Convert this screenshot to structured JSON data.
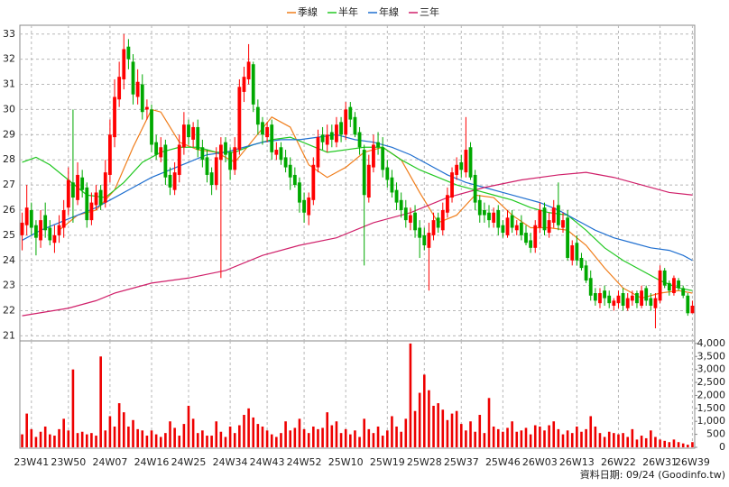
{
  "chart_data": {
    "type": "candlestick",
    "legend_position": "top",
    "grid": true,
    "note": "資料日期: 09/24  (Goodinfo.tw)",
    "categories": [
      null,
      null,
      "23W41",
      null,
      null,
      null,
      null,
      null,
      null,
      null,
      "23W50",
      null,
      null,
      null,
      null,
      null,
      null,
      null,
      null,
      "24W07",
      null,
      null,
      null,
      null,
      null,
      null,
      null,
      null,
      "24W16",
      null,
      null,
      null,
      null,
      null,
      null,
      null,
      "24W25",
      null,
      null,
      null,
      null,
      null,
      null,
      null,
      null,
      "24W34",
      null,
      null,
      null,
      null,
      null,
      null,
      null,
      "24W43",
      null,
      null,
      null,
      null,
      null,
      null,
      null,
      "24W52",
      null,
      null,
      null,
      null,
      null,
      null,
      null,
      null,
      "25W10",
      null,
      null,
      null,
      null,
      null,
      null,
      null,
      null,
      "25W19",
      null,
      null,
      null,
      null,
      null,
      null,
      null,
      "25W28",
      null,
      null,
      null,
      null,
      null,
      null,
      null,
      "25W37",
      null,
      null,
      null,
      null,
      null,
      null,
      null,
      null,
      "25W46",
      null,
      null,
      null,
      null,
      null,
      null,
      null,
      "26W03",
      null,
      null,
      null,
      null,
      null,
      null,
      null,
      "26W13",
      null,
      null,
      null,
      null,
      null,
      null,
      null,
      null,
      "26W22",
      null,
      null,
      null,
      null,
      null,
      null,
      null,
      null,
      "26W31",
      null,
      null,
      null,
      null,
      null,
      null,
      "26W39"
    ],
    "ylim": [
      20.8,
      33.35
    ],
    "yticks": [
      21,
      22,
      23,
      24,
      25,
      26,
      27,
      28,
      29,
      30,
      31,
      32,
      33
    ],
    "y2lim": [
      0,
      4100
    ],
    "y2ticks": [
      0,
      500,
      {
        "value": 1000,
        "label": "1,000"
      },
      {
        "value": 1500,
        "label": "1,500"
      },
      {
        "value": 2000,
        "label": "2,000"
      },
      {
        "value": 2500,
        "label": "2,500"
      },
      {
        "value": 3000,
        "label": "3,000"
      },
      {
        "value": 3500,
        "label": "3,500"
      },
      {
        "value": 4000,
        "label": "4,000"
      }
    ],
    "up_color": "#ff0000",
    "down_color": "#00a800",
    "open": [
      25.0,
      25.4,
      26.0,
      25.4,
      24.8,
      25.8,
      25.3,
      24.7,
      25.0,
      25.3,
      26.1,
      27.1,
      26.4,
      27.3,
      26.9,
      25.6,
      26.2,
      26.8,
      26.3,
      27.4,
      28.9,
      30.4,
      31.2,
      32.5,
      31.9,
      30.5,
      31.0,
      30.0,
      30.0,
      28.7,
      28.1,
      28.6,
      27.4,
      26.8,
      27.4,
      28.5,
      29.4,
      28.8,
      29.3,
      28.5,
      28.1,
      27.5,
      27.0,
      28.0,
      28.7,
      28.3,
      27.6,
      28.4,
      30.7,
      31.2,
      31.8,
      30.1,
      29.5,
      28.9,
      29.4,
      28.2,
      28.5,
      28.1,
      27.8,
      27.4,
      27.1,
      26.4,
      25.8,
      26.4,
      27.7,
      29.0,
      28.6,
      29.1,
      28.7,
      29.5,
      29.0,
      30.1,
      29.7,
      29.1,
      28.4,
      26.5,
      27.7,
      28.7,
      28.5,
      27.7,
      27.3,
      26.8,
      26.4,
      26.1,
      25.5,
      25.9,
      25.3,
      25.0,
      24.5,
      25.0,
      25.7,
      25.2,
      25.9,
      26.5,
      27.4,
      27.9,
      27.5,
      28.5,
      27.4,
      26.4,
      26.0,
      25.9,
      25.5,
      26.0,
      25.4,
      25.0,
      25.8,
      25.2,
      25.5,
      25.1,
      24.8,
      24.5,
      25.3,
      26.1,
      25.1,
      25.5,
      26.2,
      25.3,
      25.7,
      24.0,
      24.7,
      24.1,
      23.8,
      23.3,
      22.7,
      22.3,
      22.8,
      22.6,
      22.2,
      22.3,
      22.7,
      22.1,
      22.4,
      22.7,
      22.2,
      22.9,
      22.5,
      22.1,
      22.4,
      23.6,
      23.1,
      22.7,
      23.2,
      22.9,
      22.6,
      21.9
    ],
    "high": [
      25.9,
      27.0,
      26.3,
      25.6,
      26.0,
      26.3,
      25.6,
      25.4,
      25.8,
      26.4,
      27.7,
      30.0,
      27.9,
      27.6,
      27.1,
      26.7,
      27.0,
      27.0,
      28.0,
      29.6,
      31.2,
      31.9,
      33.0,
      32.8,
      32.2,
      31.6,
      31.4,
      30.4,
      30.2,
      29.0,
      28.9,
      28.8,
      27.7,
      27.9,
      29.0,
      29.9,
      29.6,
      29.5,
      29.6,
      28.8,
      28.4,
      27.7,
      28.5,
      28.9,
      28.9,
      28.5,
      28.9,
      31.2,
      31.7,
      32.6,
      31.9,
      30.4,
      29.7,
      29.5,
      29.6,
      28.7,
      28.7,
      28.4,
      28.1,
      27.7,
      27.3,
      26.7,
      26.7,
      28.1,
      29.2,
      29.3,
      29.4,
      29.4,
      29.7,
      29.7,
      30.3,
      30.3,
      29.9,
      29.3,
      28.6,
      28.2,
      29.0,
      29.1,
      28.9,
      28.0,
      27.6,
      27.1,
      26.7,
      26.4,
      26.1,
      26.2,
      25.6,
      25.3,
      25.5,
      25.9,
      25.9,
      26.3,
      26.9,
      27.7,
      28.1,
      28.2,
      29.7,
      28.7,
      27.6,
      26.6,
      26.3,
      26.2,
      26.1,
      26.2,
      25.6,
      26.0,
      26.0,
      25.6,
      25.8,
      25.4,
      25.1,
      25.6,
      26.3,
      26.3,
      25.9,
      26.4,
      27.1,
      25.9,
      26.0,
      24.8,
      25.0,
      24.3,
      24.0,
      23.6,
      22.9,
      22.9,
      23.0,
      22.8,
      22.5,
      22.8,
      22.9,
      22.7,
      22.8,
      22.8,
      23.0,
      23.0,
      22.7,
      22.7,
      23.8,
      23.7,
      23.2,
      23.4,
      23.3,
      23.0,
      22.7,
      22.4
    ],
    "low": [
      24.4,
      25.0,
      25.0,
      24.2,
      24.5,
      24.9,
      24.6,
      24.3,
      24.7,
      24.9,
      25.8,
      25.5,
      26.2,
      26.5,
      25.3,
      25.4,
      26.0,
      26.0,
      26.1,
      27.1,
      28.5,
      30.1,
      30.8,
      31.6,
      30.2,
      30.2,
      29.6,
      29.6,
      28.3,
      28.0,
      27.9,
      27.0,
      26.6,
      26.6,
      27.1,
      28.2,
      28.6,
      28.5,
      28.1,
      27.7,
      27.1,
      26.6,
      26.8,
      23.3,
      27.9,
      27.2,
      27.4,
      28.2,
      30.3,
      31.0,
      29.9,
      29.0,
      28.6,
      28.7,
      28.0,
      28.0,
      27.8,
      27.5,
      26.8,
      26.9,
      25.9,
      25.5,
      25.4,
      26.2,
      27.5,
      28.4,
      28.3,
      28.5,
      28.5,
      28.7,
      28.8,
      29.3,
      28.9,
      28.2,
      23.8,
      26.3,
      27.5,
      28.2,
      27.3,
      26.9,
      26.5,
      26.0,
      25.7,
      25.3,
      25.2,
      24.9,
      24.1,
      24.4,
      22.8,
      24.8,
      25.1,
      25.0,
      25.7,
      26.3,
      27.2,
      27.3,
      27.3,
      27.2,
      26.0,
      25.5,
      25.5,
      25.3,
      25.3,
      25.0,
      24.9,
      24.9,
      25.1,
      25.0,
      24.8,
      24.6,
      24.3,
      24.3,
      25.1,
      25.0,
      24.9,
      25.3,
      25.2,
      25.1,
      24.0,
      23.8,
      23.8,
      23.6,
      23.1,
      22.4,
      22.2,
      22.1,
      22.2,
      22.1,
      22.0,
      22.1,
      22.0,
      22.0,
      22.2,
      22.1,
      22.1,
      22.2,
      22.0,
      21.3,
      22.3,
      22.9,
      22.6,
      22.6,
      22.8,
      22.5,
      21.8,
      21.9
    ],
    "close": [
      25.5,
      26.1,
      25.3,
      24.9,
      25.6,
      25.2,
      24.8,
      25.0,
      25.4,
      26.0,
      27.2,
      26.5,
      27.4,
      26.8,
      25.6,
      26.3,
      26.7,
      26.2,
      27.5,
      29.0,
      30.5,
      31.3,
      32.4,
      32.0,
      30.6,
      31.1,
      29.9,
      30.1,
      28.6,
      28.2,
      28.5,
      27.3,
      26.9,
      27.5,
      28.6,
      29.4,
      28.9,
      29.3,
      28.4,
      28.0,
      27.4,
      27.0,
      28.1,
      28.6,
      28.2,
      27.6,
      28.5,
      30.9,
      31.3,
      31.9,
      30.2,
      29.4,
      29.0,
      29.3,
      28.3,
      28.4,
      28.0,
      27.7,
      27.3,
      27.0,
      26.3,
      25.9,
      26.5,
      27.8,
      28.9,
      28.7,
      29.0,
      28.8,
      29.4,
      29.0,
      30.0,
      29.6,
      29.0,
      28.5,
      26.6,
      27.8,
      28.6,
      28.5,
      27.6,
      27.2,
      26.7,
      26.3,
      26.0,
      25.6,
      25.8,
      25.2,
      24.9,
      24.6,
      25.1,
      25.6,
      25.3,
      26.0,
      26.6,
      27.5,
      27.8,
      27.6,
      28.4,
      27.3,
      26.3,
      25.8,
      25.8,
      25.6,
      25.9,
      25.3,
      25.1,
      25.7,
      25.3,
      25.4,
      25.0,
      24.7,
      24.5,
      25.4,
      26.0,
      25.2,
      25.6,
      26.1,
      25.4,
      25.6,
      24.1,
      24.6,
      24.0,
      23.7,
      23.2,
      22.6,
      22.4,
      22.7,
      22.5,
      22.3,
      22.4,
      22.6,
      22.2,
      22.5,
      22.6,
      22.3,
      22.8,
      22.4,
      22.2,
      22.5,
      23.6,
      23.0,
      22.8,
      23.3,
      22.9,
      22.6,
      21.9,
      22.2
    ],
    "volume": {
      "color": "#ee0000",
      "axis": "y2",
      "values": [
        500,
        1300,
        700,
        400,
        600,
        800,
        500,
        450,
        700,
        1100,
        650,
        3000,
        550,
        600,
        500,
        550,
        450,
        3500,
        650,
        1200,
        800,
        1700,
        1350,
        800,
        1050,
        700,
        650,
        450,
        650,
        500,
        400,
        550,
        1000,
        750,
        450,
        900,
        1600,
        1100,
        550,
        650,
        450,
        450,
        1000,
        600,
        400,
        800,
        550,
        850,
        1250,
        1500,
        1150,
        900,
        800,
        650,
        500,
        400,
        550,
        1000,
        650,
        750,
        1100,
        700,
        550,
        800,
        700,
        750,
        1350,
        850,
        1000,
        550,
        700,
        500,
        650,
        400,
        1100,
        700,
        550,
        800,
        450,
        650,
        1200,
        800,
        600,
        1100,
        4000,
        1400,
        2100,
        2800,
        2200,
        1600,
        1700,
        1450,
        1050,
        1300,
        1400,
        900,
        650,
        1000,
        600,
        1250,
        550,
        1900,
        800,
        700,
        600,
        750,
        1000,
        600,
        650,
        750,
        500,
        850,
        800,
        650,
        850,
        1000,
        700,
        500,
        650,
        550,
        800,
        600,
        700,
        1200,
        800,
        550,
        400,
        600,
        550,
        500,
        550,
        400,
        700,
        300,
        450,
        350,
        650,
        400,
        300,
        250,
        200,
        300,
        200,
        150,
        100,
        200
      ]
    },
    "series": [
      {
        "name": "季線",
        "color": "#f07d1a",
        "x": [
          8,
          12,
          16,
          20,
          24,
          28,
          30,
          34,
          38,
          42,
          46,
          50,
          54,
          58,
          62,
          66,
          70,
          74,
          78,
          82,
          86,
          90,
          94,
          98,
          102,
          106,
          110,
          114,
          118,
          122,
          126,
          130,
          134,
          138,
          142,
          145
        ],
        "values": [
          25.2,
          25.8,
          26.0,
          26.8,
          28.5,
          30.0,
          29.9,
          28.7,
          28.4,
          28.3,
          27.9,
          28.8,
          29.7,
          29.3,
          27.8,
          27.3,
          27.7,
          28.3,
          28.5,
          28.0,
          26.7,
          25.5,
          25.8,
          26.6,
          26.5,
          25.8,
          25.3,
          25.3,
          25.2,
          24.6,
          23.7,
          22.9,
          22.5,
          22.7,
          22.8,
          22.7
        ]
      },
      {
        "name": "半年",
        "color": "#22c822",
        "x": [
          0,
          3,
          6,
          10,
          14,
          18,
          22,
          26,
          30,
          34,
          38,
          42,
          46,
          50,
          54,
          58,
          62,
          66,
          70,
          74,
          78,
          82,
          86,
          90,
          94,
          98,
          102,
          106,
          110,
          114,
          118,
          122,
          126,
          130,
          134,
          138,
          142,
          145
        ],
        "values": [
          27.9,
          28.1,
          27.8,
          27.2,
          26.6,
          26.5,
          27.1,
          27.9,
          28.3,
          28.5,
          28.5,
          28.3,
          28.3,
          28.6,
          28.8,
          28.9,
          28.6,
          28.3,
          28.4,
          28.5,
          28.5,
          28.0,
          27.6,
          27.3,
          27.0,
          26.8,
          26.6,
          26.4,
          26.1,
          25.9,
          25.8,
          25.2,
          24.5,
          24.0,
          23.6,
          23.2,
          22.9,
          22.8
        ]
      },
      {
        "name": "年線",
        "color": "#1f6fd0",
        "x": [
          0,
          4,
          8,
          12,
          16,
          20,
          24,
          28,
          32,
          36,
          40,
          44,
          48,
          52,
          56,
          60,
          64,
          68,
          72,
          76,
          80,
          84,
          88,
          92,
          96,
          100,
          104,
          108,
          112,
          116,
          120,
          124,
          128,
          132,
          136,
          140,
          143,
          145
        ],
        "values": [
          24.8,
          25.2,
          25.5,
          25.8,
          26.1,
          26.5,
          26.9,
          27.3,
          27.6,
          27.9,
          28.2,
          28.3,
          28.5,
          28.7,
          28.8,
          28.8,
          28.9,
          29.0,
          28.8,
          28.7,
          28.5,
          28.2,
          27.8,
          27.4,
          27.1,
          26.9,
          26.7,
          26.5,
          26.3,
          26.0,
          25.6,
          25.2,
          24.9,
          24.7,
          24.5,
          24.4,
          24.2,
          24.0
        ]
      },
      {
        "name": "三年",
        "color": "#d0206a",
        "x": [
          0,
          10,
          16,
          20,
          28,
          36,
          44,
          52,
          60,
          68,
          76,
          84,
          92,
          100,
          108,
          116,
          122,
          128,
          134,
          140,
          145
        ],
        "values": [
          21.8,
          22.1,
          22.4,
          22.7,
          23.1,
          23.3,
          23.6,
          24.2,
          24.6,
          24.9,
          25.5,
          25.9,
          26.5,
          26.9,
          27.2,
          27.4,
          27.5,
          27.3,
          27.0,
          26.7,
          26.6
        ]
      }
    ]
  }
}
